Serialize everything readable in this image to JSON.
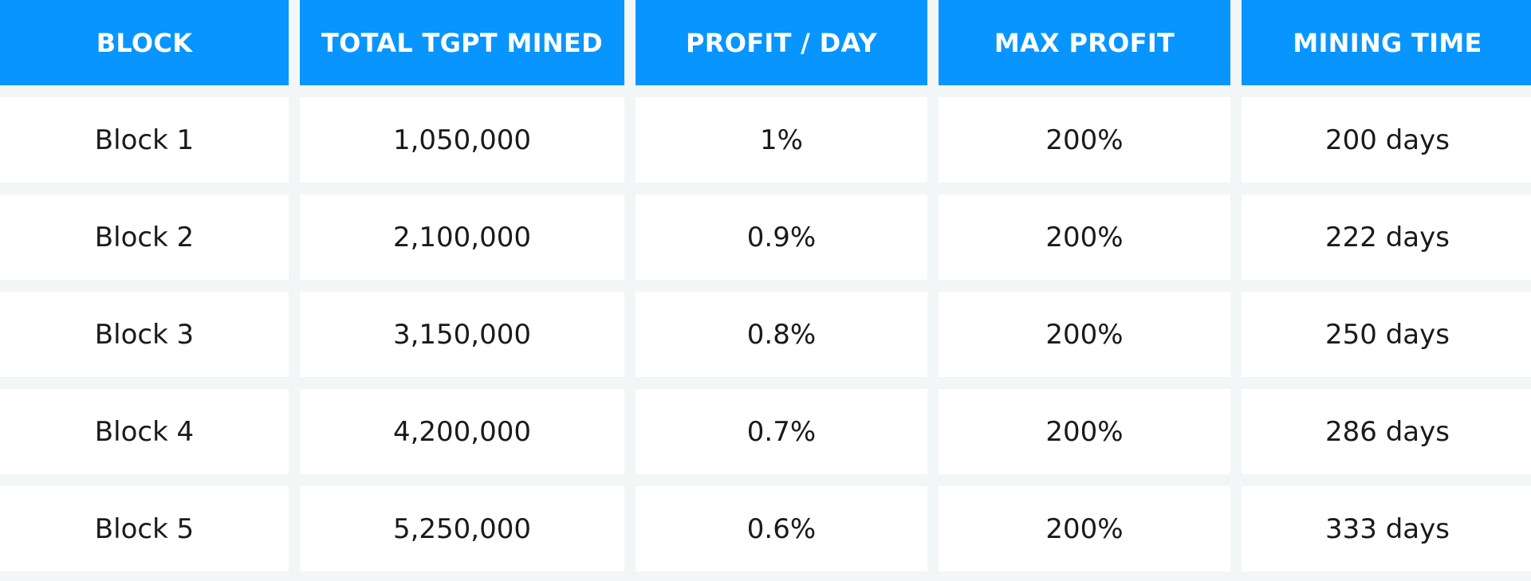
{
  "table": {
    "headers": [
      "BLOCK",
      "TOTAL TGPT MINED",
      "PROFIT / DAY",
      "MAX PROFIT",
      "MINING TIME"
    ],
    "rows": [
      [
        "Block 1",
        "1,050,000",
        "1%",
        "200%",
        "200 days"
      ],
      [
        "Block 2",
        "2,100,000",
        "0.9%",
        "200%",
        "222 days"
      ],
      [
        "Block 3",
        "3,150,000",
        "0.8%",
        "200%",
        "250 days"
      ],
      [
        "Block 4",
        "4,200,000",
        "0.7%",
        "200%",
        "286 days"
      ],
      [
        "Block 5",
        "5,250,000",
        "0.6%",
        "200%",
        "333 days"
      ]
    ]
  },
  "colors": {
    "header_bg": "#0895ff",
    "header_text": "#ffffff",
    "cell_bg": "#ffffff",
    "gap_bg": "#f3f6f7",
    "cell_text": "#1a1a1a"
  }
}
